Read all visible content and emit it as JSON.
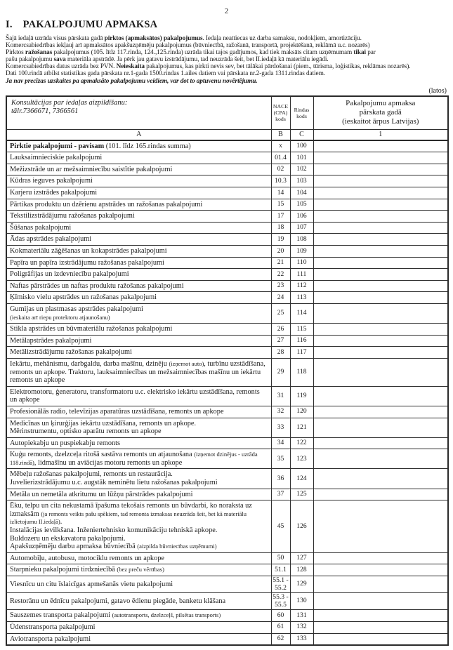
{
  "page": {
    "number": "2",
    "units_label": "(latos)"
  },
  "title": {
    "numeral": "I.",
    "text": "PAKALPOJUMU APMAKSA"
  },
  "intro": {
    "lines": [
      [
        {
          "t": "Šajā iedaļā uzrāda visus pārskata gadā "
        },
        {
          "t": "pirktos (apmaksātos) pakalpojumus",
          "b": true
        },
        {
          "t": ". Iedaļa neattiecas uz darba samaksu, nodokļiem, amortizāciju."
        }
      ],
      [
        {
          "t": "Komercsabiedrības iekļauj arī apmaksātos apakšuzņēmēju pakalpojumus (būvniecībā, ražošanā, transportā, projektēšanā, reklāmā u.c. nozarēs)"
        }
      ],
      [
        {
          "t": "Pirktos "
        },
        {
          "t": "ražošanas",
          "b": true
        },
        {
          "t": " pakalpojumus (105. līdz 117.rinda, 124.,125.rinda) uzrāda tikai tajos gadījumos, kad tiek maksāts citam uzņēmumam "
        },
        {
          "t": "tikai",
          "b": true
        },
        {
          "t": " par"
        }
      ],
      [
        {
          "t": "pašu pakalpojumu "
        },
        {
          "t": "sava",
          "b": true
        },
        {
          "t": " materiāla apstrādē. Ja pērk jau gatavu izstrādājumu, tad neuzrāda šeit, bet II.iedaļā kā materiālu iegādi."
        }
      ],
      [
        {
          "t": "Komercsabiedrības datus uzrāda bez PVN. "
        },
        {
          "t": "Neieskaita",
          "b": true
        },
        {
          "t": " pakalpojumus, kas pirkti nevis sev, bet tālākai pārdošanai (piem., tūrisma, loģistikas, reklāmas nozarēs)."
        }
      ],
      [
        {
          "t": "Dati 100.rindā atbilst statistikas gada pārskata nr.1-gada 1500.rindas 1.ailes datiem vai pārskata nr.2-gada 1311.rindas datiem."
        }
      ],
      [
        {
          "t": "Ja nav precīzas uzskaites pa apmaksāto pakalpojumu veidiem, var dot to aptuvenu novērtējumu.",
          "bi": true
        }
      ]
    ]
  },
  "table": {
    "consult_line1": "Konsultācijas par iedaļas aizpildīšanu:",
    "consult_line2": "tālr.7366671, 7366561",
    "col_nace": "NACE (CPA) kods",
    "col_rindas": "Rindas kods",
    "col_value": {
      "l1": "Pakalpojumu apmaksa",
      "l2": "pārskata gadā",
      "l3": "(ieskaitot ārpus Latvijas)"
    },
    "letters": {
      "a": "A",
      "b": "B",
      "c": "C",
      "one": "1"
    },
    "rows": [
      {
        "code": "100",
        "nace": "x",
        "desc": [
          [
            {
              "t": "Pirktie pakalpojumi - pavisam",
              "b": true
            },
            {
              "t": " (101. līdz 165.rindas summa)"
            }
          ]
        ]
      },
      {
        "code": "101",
        "nace": "01.4",
        "desc": [
          [
            {
              "t": "Lauksaimnieciskie pakalpojumi"
            }
          ]
        ]
      },
      {
        "code": "102",
        "nace": "02",
        "desc": [
          [
            {
              "t": "Mežizstrāde un ar mežsaimniecību saistītie pakalpojumi"
            }
          ]
        ]
      },
      {
        "code": "103",
        "nace": "10.3",
        "desc": [
          [
            {
              "t": "Kūdras ieguves pakalpojumi"
            }
          ]
        ]
      },
      {
        "code": "104",
        "nace": "14",
        "desc": [
          [
            {
              "t": "Karjeru izstrādes pakalpojumi"
            }
          ]
        ]
      },
      {
        "code": "105",
        "nace": "15",
        "desc": [
          [
            {
              "t": "Pārtikas produktu un dzērienu apstrādes un ražošanas pakalpojumi"
            }
          ]
        ]
      },
      {
        "code": "106",
        "nace": "17",
        "desc": [
          [
            {
              "t": "Tekstilizstrādājumu ražošanas pakalpojumi"
            }
          ]
        ]
      },
      {
        "code": "107",
        "nace": "18",
        "desc": [
          [
            {
              "t": "Šūšanas pakalpojumi"
            }
          ]
        ]
      },
      {
        "code": "108",
        "nace": "19",
        "desc": [
          [
            {
              "t": "Ādas apstrādes pakalpojumi"
            }
          ]
        ]
      },
      {
        "code": "109",
        "nace": "20",
        "desc": [
          [
            {
              "t": "Kokmateriālu zāģēšanas un kokapstrādes pakalpojumi"
            }
          ]
        ]
      },
      {
        "code": "110",
        "nace": "21",
        "desc": [
          [
            {
              "t": "Papīra un papīra izstrādājumu ražošanas pakalpojumi"
            }
          ]
        ]
      },
      {
        "code": "111",
        "nace": "22",
        "desc": [
          [
            {
              "t": "Poligrāfijas un izdevniecību pakalpojumi"
            }
          ]
        ]
      },
      {
        "code": "112",
        "nace": "23",
        "desc": [
          [
            {
              "t": "Naftas pārstrādes un naftas produktu ražošanas pakalpojumi"
            }
          ]
        ]
      },
      {
        "code": "113",
        "nace": "24",
        "desc": [
          [
            {
              "t": "Ķīmisko vielu apstrādes un ražošanas pakalpojumi"
            }
          ]
        ]
      },
      {
        "code": "114",
        "nace": "25",
        "desc": [
          [
            {
              "t": "Gumijas un plastmasas apstrādes pakalpojumi"
            }
          ],
          [
            {
              "t": "(ieskaita arī riepu protektoru atjaunošanu)",
              "s": true
            }
          ]
        ]
      },
      {
        "code": "115",
        "nace": "26",
        "desc": [
          [
            {
              "t": "Stikla apstrādes un būvmateriālu ražošanas pakalpojumi"
            }
          ]
        ]
      },
      {
        "code": "116",
        "nace": "27",
        "desc": [
          [
            {
              "t": "Metālapstrādes pakalpojumi"
            }
          ]
        ]
      },
      {
        "code": "117",
        "nace": "28",
        "desc": [
          [
            {
              "t": "Metālizstrādājumu ražošanas pakalpojumi"
            }
          ]
        ]
      },
      {
        "code": "118",
        "nace": "29",
        "desc": [
          [
            {
              "t": "Iekārtu, mehānismu, darbgaldu, darba mašīnu, dzinēju "
            },
            {
              "t": "(izņemot auto)",
              "s": true
            },
            {
              "t": ", turbīnu uzstādīšana, remonts un apkope. Traktoru, lauksaimniecības un mežsaimniecības mašīnu un iekārtu remonts un apkope"
            }
          ]
        ]
      },
      {
        "code": "119",
        "nace": "31",
        "desc": [
          [
            {
              "t": "Elektromotoru, ģeneratoru, transformatoru u.c. elektrisko iekārtu uzstādīšana, remonts un apkope"
            }
          ]
        ]
      },
      {
        "code": "120",
        "nace": "32",
        "desc": [
          [
            {
              "t": "Profesionālās radio, televīzijas aparatūras uzstādīšana, remonts un apkope"
            }
          ]
        ]
      },
      {
        "code": "121",
        "nace": "33",
        "desc": [
          [
            {
              "t": "Medicīnas un ķirurģijas iekārtu uzstādīšana, remonts un apkope."
            }
          ],
          [
            {
              "t": "Mērinstrumentu, optisko aparātu remonts un apkope"
            }
          ]
        ]
      },
      {
        "code": "122",
        "nace": "34",
        "desc": [
          [
            {
              "t": "Autopiekabju un puspiekabju remonts"
            }
          ]
        ]
      },
      {
        "code": "123",
        "nace": "35",
        "desc": [
          [
            {
              "t": "Kuģu remonts, dzelzceļa ritošā sastāva remonts un atjaunošana "
            },
            {
              "t": "(izņemot dzinējus - uzrāda 118.rindā)",
              "s": true
            },
            {
              "t": ", lidmašīnu un aviācijas motoru remonts un apkope"
            }
          ]
        ]
      },
      {
        "code": "124",
        "nace": "36",
        "desc": [
          [
            {
              "t": "Mēbeļu ražošanas pakalpojumi, remonts un restaurācija."
            }
          ],
          [
            {
              "t": "Juvelierizstrādājumu u.c. augstāk neminētu lietu ražošanas pakalpojumi"
            }
          ]
        ]
      },
      {
        "code": "125",
        "nace": "37",
        "desc": [
          [
            {
              "t": "Metāla un nemetāla atkritumu un lūžņu pārstrādes pakalpojumi"
            }
          ]
        ]
      },
      {
        "code": "126",
        "nace": "45",
        "desc": [
          [
            {
              "t": "Ēku, telpu un cita nekustamā īpašuma tekošais remonts un būvdarbi, ko noraksta uz izmaksām "
            },
            {
              "t": "(ja remonts veikts pašu spēkiem, tad remonta izmaksas neuzrāda šeit, bet kā materiālu izlietojumu II.iedaļā)",
              "s": true
            },
            {
              "t": "."
            }
          ],
          [
            {
              "t": "Instalācijas ievilkšana. Inženiertehnisko komunikāciju tehniskā apkope."
            }
          ],
          [
            {
              "t": "Buldozeru un ekskavatoru pakalpojumi."
            }
          ],
          [
            {
              "t": "Apakšuzņēmēju darbu apmaksa būvniecībā "
            },
            {
              "t": "(aizpilda būvniecības uzņēmumi)",
              "s": true
            }
          ]
        ]
      },
      {
        "code": "127",
        "nace": "50",
        "desc": [
          [
            {
              "t": "Automobiļu, autobusu, motociklu remonts un apkope"
            }
          ]
        ]
      },
      {
        "code": "128",
        "nace": "51.1",
        "desc": [
          [
            {
              "t": "Starpnieku pakalpojumi tirdzniecībā "
            },
            {
              "t": "(bez preču vērtības)",
              "s": true
            }
          ]
        ]
      },
      {
        "code": "129",
        "nace": "55.1 - 55.2",
        "desc": [
          [
            {
              "t": "Viesnīcu un citu īslaicīgas apmešanās vietu pakalpojumi"
            }
          ]
        ]
      },
      {
        "code": "130",
        "nace": "55.3 - 55.5",
        "desc": [
          [
            {
              "t": "Restorānu un ēdnīcu pakalpojumi, gatavo ēdienu piegāde, banketu klāšana"
            }
          ]
        ]
      },
      {
        "code": "131",
        "nace": "60",
        "desc": [
          [
            {
              "t": "Sauszemes transporta pakalpojumi "
            },
            {
              "t": "(autotransports, dzelzceļš, pilsētas transports)",
              "s": true
            }
          ]
        ]
      },
      {
        "code": "132",
        "nace": "61",
        "desc": [
          [
            {
              "t": "Ūdenstransporta pakalpojumi"
            }
          ]
        ]
      },
      {
        "code": "133",
        "nace": "62",
        "desc": [
          [
            {
              "t": "Aviotransporta pakalpojumi"
            }
          ]
        ]
      }
    ]
  }
}
